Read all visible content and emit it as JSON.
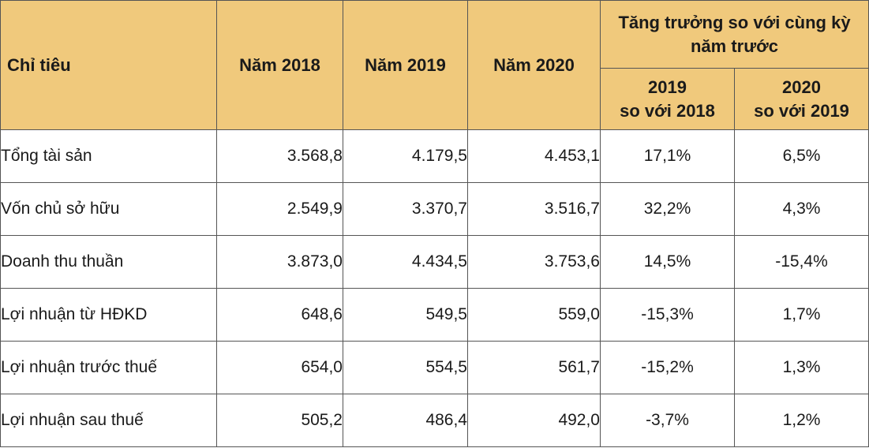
{
  "header": {
    "indicator": "Chỉ tiêu",
    "year_2018": "Năm 2018",
    "year_2019": "Năm 2019",
    "year_2020": "Năm 2020",
    "growth_group": "Tăng trưởng so với cùng kỳ năm trước",
    "growth_2019_line1": "2019",
    "growth_2019_line2": "so với 2018",
    "growth_2020_line1": "2020",
    "growth_2020_line2": "so với 2019"
  },
  "rows": [
    {
      "label": "Tổng tài sản",
      "y2018": "3.568,8",
      "y2019": "4.179,5",
      "y2020": "4.453,1",
      "g2019": "17,1%",
      "g2020": "6,5%"
    },
    {
      "label": "Vốn chủ sở hữu",
      "y2018": "2.549,9",
      "y2019": "3.370,7",
      "y2020": "3.516,7",
      "g2019": "32,2%",
      "g2020": "4,3%"
    },
    {
      "label": "Doanh thu thuần",
      "y2018": "3.873,0",
      "y2019": "4.434,5",
      "y2020": "3.753,6",
      "g2019": "14,5%",
      "g2020": "-15,4%"
    },
    {
      "label": "Lợi nhuận từ HĐKD",
      "y2018": "648,6",
      "y2019": "549,5",
      "y2020": "559,0",
      "g2019": "-15,3%",
      "g2020": "1,7%"
    },
    {
      "label": "Lợi nhuận trước thuế",
      "y2018": "654,0",
      "y2019": "554,5",
      "y2020": "561,7",
      "g2019": "-15,2%",
      "g2020": "1,3%"
    },
    {
      "label": "Lợi nhuận sau thuế",
      "y2018": "505,2",
      "y2019": "486,4",
      "y2020": "492,0",
      "g2019": "-3,7%",
      "g2020": "1,2%"
    }
  ]
}
